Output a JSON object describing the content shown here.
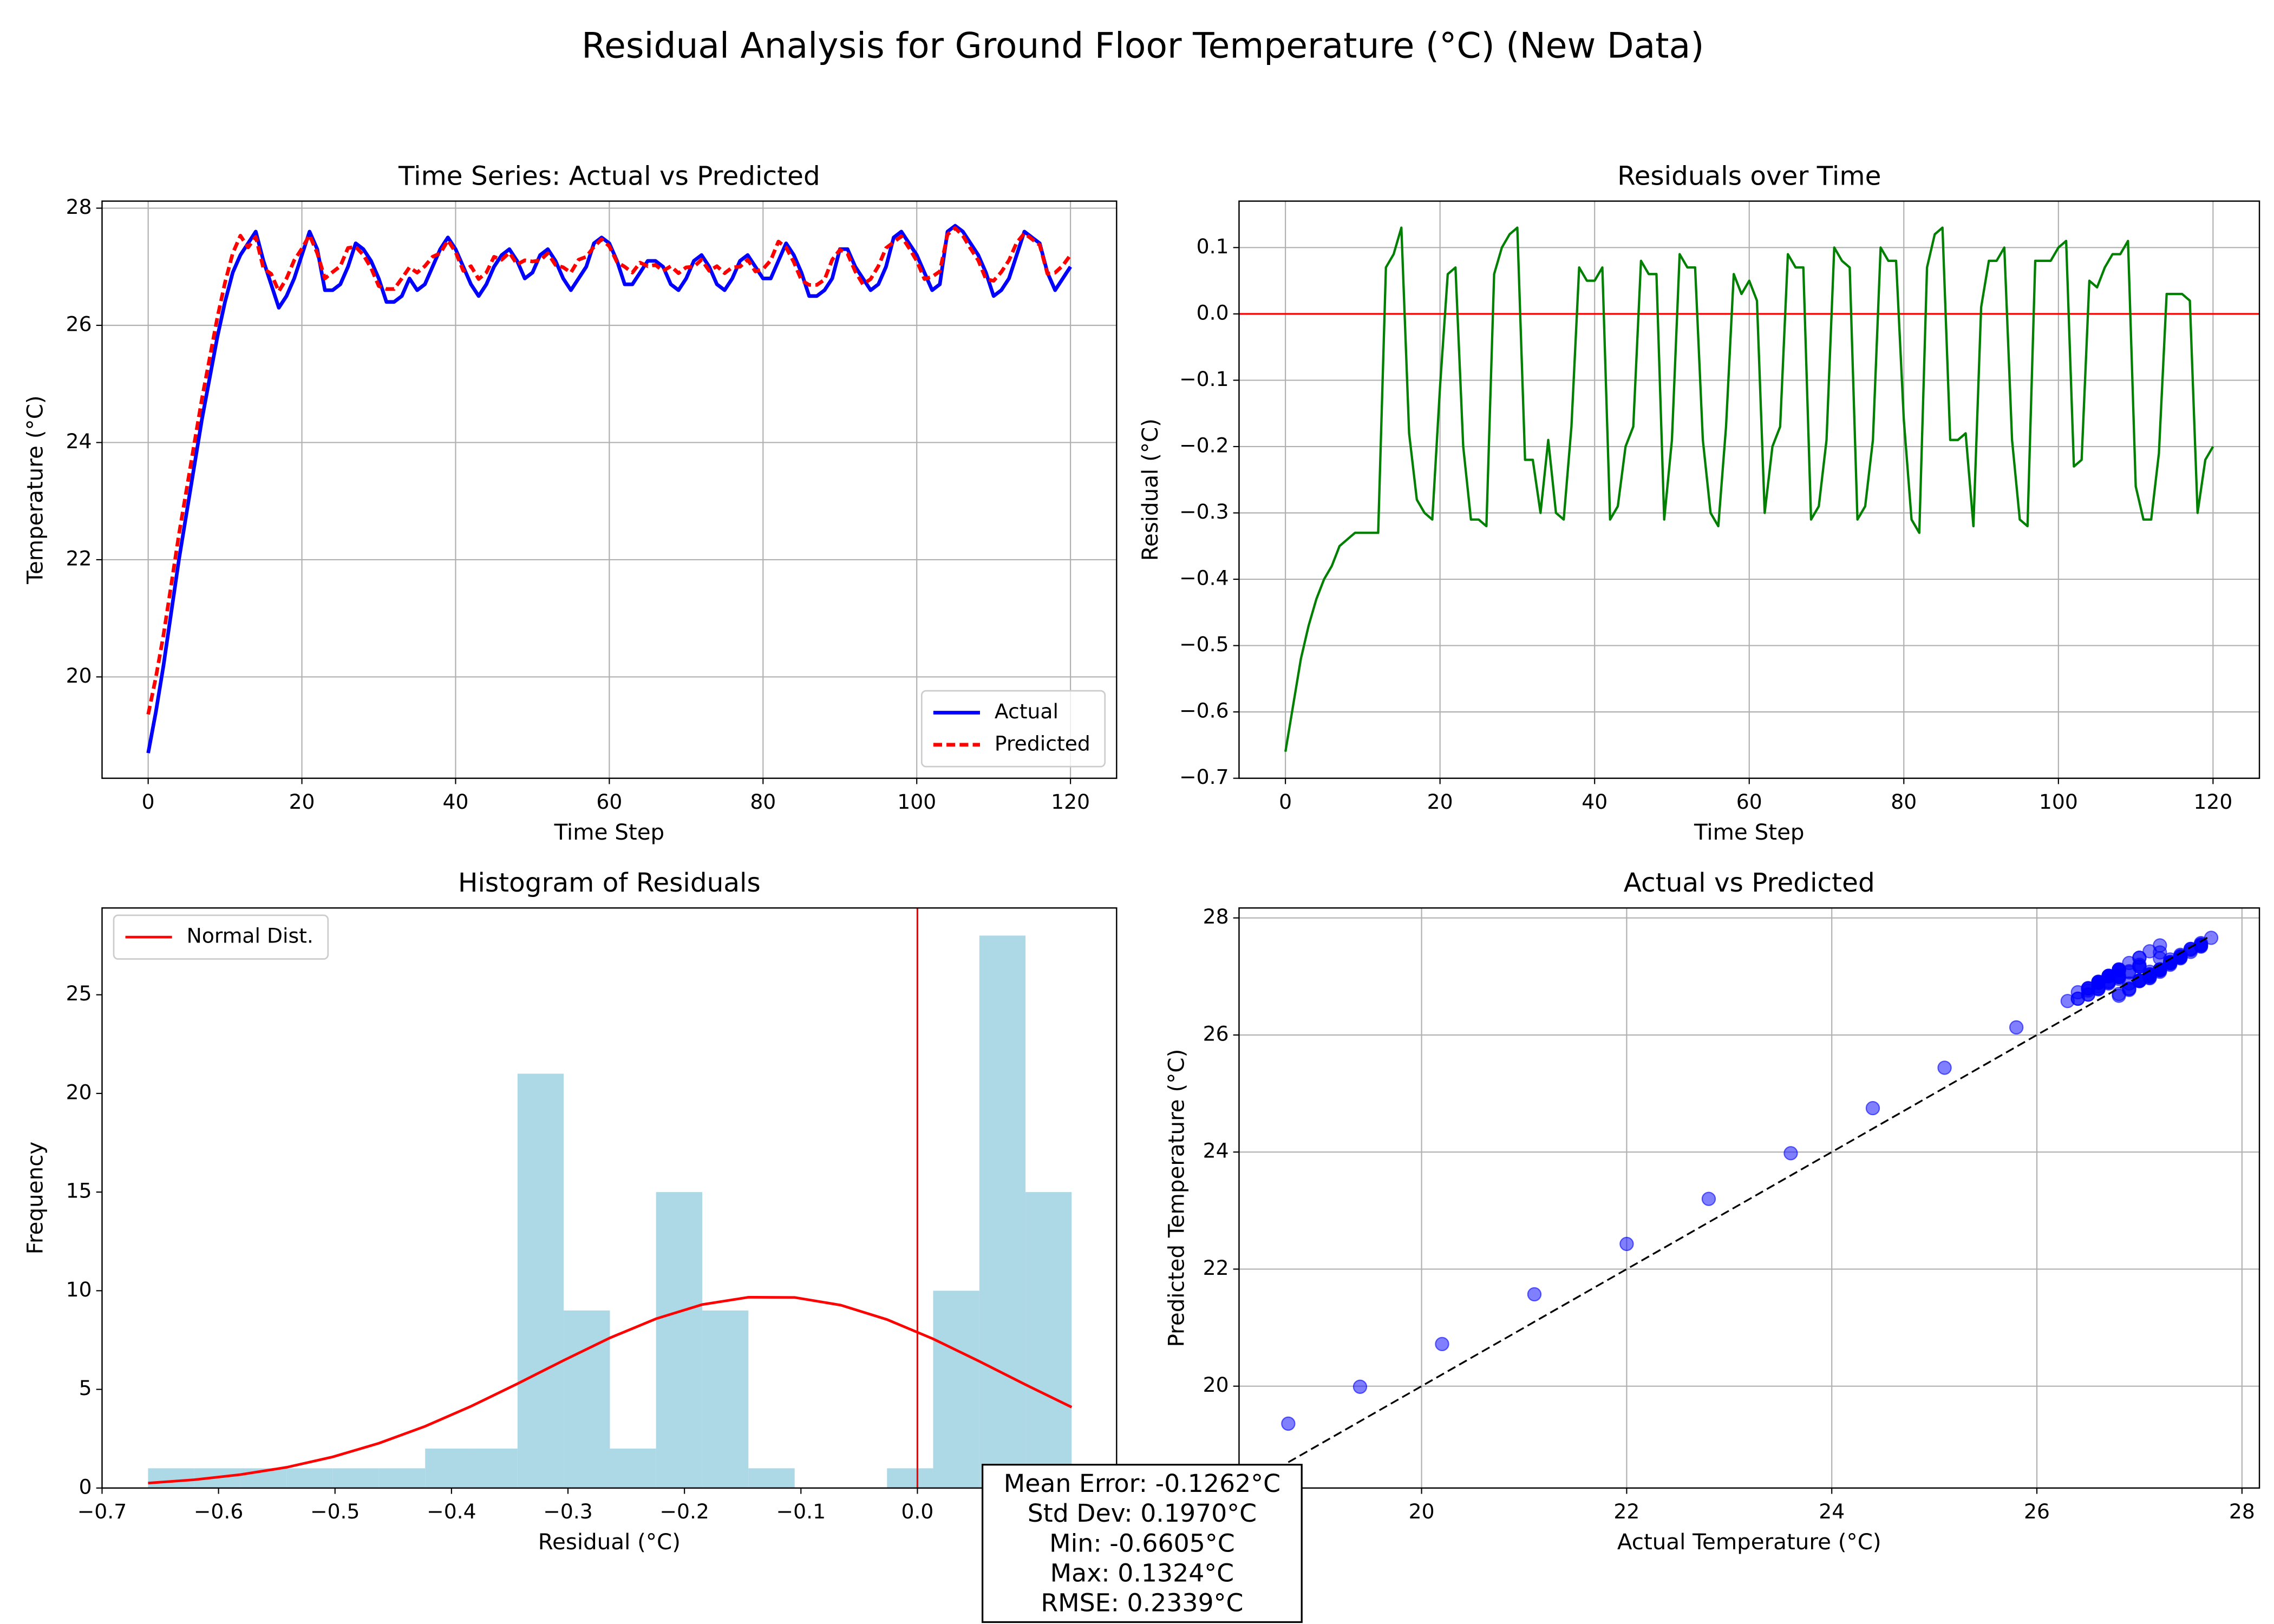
{
  "title": "Residual Analysis for Ground Floor Temperature (°C) (New Data)",
  "annotation": [
    "Mean Error: -0.1262°C",
    "Std Dev: 0.1970°C",
    "Min: -0.6605°C",
    "Max: 0.1324°C",
    "RMSE: 0.2339°C"
  ],
  "chart_data": [
    {
      "type": "line",
      "title": "Time Series: Actual vs Predicted",
      "xlabel": "Time Step",
      "ylabel": "Temperature (°C)",
      "x": [
        0,
        1,
        2,
        3,
        4,
        5,
        6,
        7,
        8,
        9,
        10,
        11,
        12,
        13,
        14,
        15,
        16,
        17,
        18,
        19,
        20,
        21,
        22,
        23,
        24,
        25,
        26,
        27,
        28,
        29,
        30,
        31,
        32,
        33,
        34,
        35,
        36,
        37,
        38,
        39,
        40,
        41,
        42,
        43,
        44,
        45,
        46,
        47,
        48,
        49,
        50,
        51,
        52,
        53,
        54,
        55,
        56,
        57,
        58,
        59,
        60,
        61,
        62,
        63,
        64,
        65,
        66,
        67,
        68,
        69,
        70,
        71,
        72,
        73,
        74,
        75,
        76,
        77,
        78,
        79,
        80,
        81,
        82,
        83,
        84,
        85,
        86,
        87,
        88,
        89,
        90,
        91,
        92,
        93,
        94,
        95,
        96,
        97,
        98,
        99,
        100,
        101,
        102,
        103,
        104,
        105,
        106,
        107,
        108,
        109,
        110,
        111,
        112,
        113,
        114,
        115,
        116,
        117,
        118,
        119,
        120
      ],
      "series": [
        {
          "name": "Actual",
          "color": "#0000ff",
          "linestyle": "solid",
          "values": [
            18.7,
            19.4,
            20.2,
            21.1,
            22.0,
            22.8,
            23.6,
            24.4,
            25.1,
            25.8,
            26.4,
            26.9,
            27.2,
            27.4,
            27.6,
            27.1,
            26.7,
            26.3,
            26.5,
            26.8,
            27.2,
            27.6,
            27.3,
            26.6,
            26.6,
            26.7,
            27.0,
            27.4,
            27.3,
            27.1,
            26.8,
            26.4,
            26.4,
            26.5,
            26.8,
            26.6,
            26.7,
            27.0,
            27.3,
            27.5,
            27.3,
            27.0,
            26.7,
            26.5,
            26.7,
            27.0,
            27.2,
            27.3,
            27.1,
            26.8,
            26.9,
            27.2,
            27.3,
            27.1,
            26.8,
            26.6,
            26.8,
            27.0,
            27.4,
            27.5,
            27.4,
            27.1,
            26.7,
            26.7,
            26.9,
            27.1,
            27.1,
            27.0,
            26.7,
            26.6,
            26.8,
            27.1,
            27.2,
            27.0,
            26.7,
            26.6,
            26.8,
            27.1,
            27.2,
            27.0,
            26.8,
            26.8,
            27.1,
            27.4,
            27.2,
            26.9,
            26.5,
            26.5,
            26.6,
            26.8,
            27.3,
            27.3,
            27.0,
            26.8,
            26.6,
            26.7,
            27.0,
            27.5,
            27.6,
            27.4,
            27.2,
            26.9,
            26.6,
            26.7,
            27.6,
            27.7,
            27.6,
            27.4,
            27.2,
            26.9,
            26.5,
            26.6,
            26.8,
            27.2,
            27.6,
            27.5,
            27.4,
            26.9,
            26.6,
            26.8,
            27.0
          ]
        },
        {
          "name": "Predicted",
          "color": "#ff0000",
          "linestyle": "dashed",
          "values": [
            19.36,
            19.99,
            20.72,
            21.57,
            22.43,
            23.2,
            23.98,
            24.75,
            25.44,
            26.13,
            26.73,
            27.23,
            27.53,
            27.33,
            27.51,
            26.97,
            26.88,
            26.58,
            26.8,
            27.11,
            27.31,
            27.54,
            27.23,
            26.8,
            26.91,
            27.01,
            27.32,
            27.34,
            27.2,
            26.98,
            26.67,
            26.62,
            26.62,
            26.8,
            26.99,
            26.9,
            27.01,
            27.17,
            27.23,
            27.45,
            27.25,
            26.93,
            27.01,
            26.79,
            26.9,
            27.17,
            27.12,
            27.24,
            27.04,
            27.11,
            27.09,
            27.11,
            27.23,
            27.03,
            26.99,
            26.9,
            27.12,
            27.17,
            27.34,
            27.47,
            27.35,
            27.08,
            27.0,
            26.9,
            27.07,
            27.01,
            27.03,
            26.93,
            27.01,
            26.89,
            26.99,
            27.0,
            27.12,
            26.93,
            27.01,
            26.89,
            26.99,
            27.0,
            27.12,
            26.92,
            26.96,
            27.11,
            27.43,
            27.33,
            27.08,
            26.77,
            26.69,
            26.69,
            26.78,
            27.12,
            27.29,
            27.22,
            26.92,
            26.7,
            26.79,
            27.01,
            27.32,
            27.42,
            27.52,
            27.32,
            27.1,
            26.79,
            26.83,
            26.92,
            27.55,
            27.66,
            27.53,
            27.31,
            27.11,
            26.79,
            26.76,
            26.91,
            27.11,
            27.41,
            27.57,
            27.47,
            27.37,
            26.88,
            26.9,
            27.02,
            27.2
          ]
        }
      ],
      "xlim": [
        -6,
        126
      ],
      "ylim": [
        18.27,
        28.12
      ],
      "xticks": [
        0,
        20,
        40,
        60,
        80,
        100,
        120
      ],
      "yticks": [
        20,
        22,
        24,
        26,
        28
      ],
      "grid": true,
      "legend": "lower right"
    },
    {
      "type": "line",
      "title": "Residuals over Time",
      "xlabel": "Time Step",
      "ylabel": "Residual (°C)",
      "x": [
        0,
        1,
        2,
        3,
        4,
        5,
        6,
        7,
        8,
        9,
        10,
        11,
        12,
        13,
        14,
        15,
        16,
        17,
        18,
        19,
        20,
        21,
        22,
        23,
        24,
        25,
        26,
        27,
        28,
        29,
        30,
        31,
        32,
        33,
        34,
        35,
        36,
        37,
        38,
        39,
        40,
        41,
        42,
        43,
        44,
        45,
        46,
        47,
        48,
        49,
        50,
        51,
        52,
        53,
        54,
        55,
        56,
        57,
        58,
        59,
        60,
        61,
        62,
        63,
        64,
        65,
        66,
        67,
        68,
        69,
        70,
        71,
        72,
        73,
        74,
        75,
        76,
        77,
        78,
        79,
        80,
        81,
        82,
        83,
        84,
        85,
        86,
        87,
        88,
        89,
        90,
        91,
        92,
        93,
        94,
        95,
        96,
        97,
        98,
        99,
        100,
        101,
        102,
        103,
        104,
        105,
        106,
        107,
        108,
        109,
        110,
        111,
        112,
        113,
        114,
        115,
        116,
        117,
        118,
        119,
        120
      ],
      "series": [
        {
          "color": "#008000",
          "linestyle": "solid",
          "values": [
            -0.66,
            -0.59,
            -0.52,
            -0.47,
            -0.43,
            -0.4,
            -0.38,
            -0.35,
            -0.34,
            -0.33,
            -0.33,
            -0.33,
            -0.33,
            0.07,
            0.09,
            0.13,
            -0.18,
            -0.28,
            -0.3,
            -0.31,
            -0.11,
            0.06,
            0.07,
            -0.2,
            -0.31,
            -0.31,
            -0.32,
            0.06,
            0.1,
            0.12,
            0.13,
            -0.22,
            -0.22,
            -0.3,
            -0.19,
            -0.3,
            -0.31,
            -0.17,
            0.07,
            0.05,
            0.05,
            0.07,
            -0.31,
            -0.29,
            -0.2,
            -0.17,
            0.08,
            0.06,
            0.06,
            -0.31,
            -0.19,
            0.09,
            0.07,
            0.07,
            -0.19,
            -0.3,
            -0.32,
            -0.17,
            0.06,
            0.03,
            0.05,
            0.02,
            -0.3,
            -0.2,
            -0.17,
            0.09,
            0.07,
            0.07,
            -0.31,
            -0.29,
            -0.19,
            0.1,
            0.08,
            0.07,
            -0.31,
            -0.29,
            -0.19,
            0.1,
            0.08,
            0.08,
            -0.16,
            -0.31,
            -0.33,
            0.07,
            0.12,
            0.13,
            -0.19,
            -0.19,
            -0.18,
            -0.32,
            0.01,
            0.08,
            0.08,
            0.1,
            -0.19,
            -0.31,
            -0.32,
            0.08,
            0.08,
            0.08,
            0.1,
            0.11,
            -0.23,
            -0.22,
            0.05,
            0.04,
            0.07,
            0.09,
            0.09,
            0.11,
            -0.26,
            -0.31,
            -0.31,
            -0.21,
            0.03,
            0.03,
            0.03,
            0.02,
            -0.3,
            -0.22,
            -0.2
          ]
        }
      ],
      "reference_line": {
        "y": 0,
        "color": "#ff0000"
      },
      "xlim": [
        -6,
        126
      ],
      "ylim": [
        -0.7,
        0.17
      ],
      "xticks": [
        0,
        20,
        40,
        60,
        80,
        100,
        120
      ],
      "yticks": [
        {
          "value": -0.7,
          "label": "−0.7"
        },
        {
          "value": -0.6,
          "label": "−0.6"
        },
        {
          "value": -0.5,
          "label": "−0.5"
        },
        {
          "value": -0.4,
          "label": "−0.4"
        },
        {
          "value": -0.3,
          "label": "−0.3"
        },
        {
          "value": -0.2,
          "label": "−0.2"
        },
        {
          "value": -0.1,
          "label": "−0.1"
        },
        {
          "value": 0,
          "label": "0.0"
        },
        0.1
      ],
      "grid": true
    },
    {
      "type": "histogram",
      "title": "Histogram of Residuals",
      "xlabel": "Residual (°C)",
      "ylabel": "Frequency",
      "bins": [
        -0.6605,
        -0.6209,
        -0.5812,
        -0.5416,
        -0.5019,
        -0.4623,
        -0.4226,
        -0.383,
        -0.3433,
        -0.3037,
        -0.264,
        -0.2244,
        -0.1847,
        -0.1451,
        -0.1054,
        -0.0658,
        -0.0261,
        0.0135,
        0.0532,
        0.0928,
        0.1324
      ],
      "counts": [
        1,
        1,
        1,
        1,
        1,
        1,
        2,
        2,
        21,
        9,
        2,
        15,
        9,
        1,
        0,
        0,
        1,
        10,
        28,
        15
      ],
      "color": "#add8e6",
      "curve": {
        "name": "Normal Dist.",
        "color": "#ff0000",
        "x": [
          -0.6605,
          -0.6209,
          -0.5812,
          -0.5416,
          -0.5019,
          -0.4623,
          -0.4226,
          -0.383,
          -0.3433,
          -0.3037,
          -0.264,
          -0.2244,
          -0.1847,
          -0.1451,
          -0.1054,
          -0.0658,
          -0.0261,
          0.0135,
          0.0532,
          0.0928,
          0.1324
        ],
        "values": [
          0.25,
          0.42,
          0.68,
          1.05,
          1.58,
          2.27,
          3.13,
          4.15,
          5.29,
          6.47,
          7.61,
          8.58,
          9.3,
          9.67,
          9.66,
          9.27,
          8.54,
          7.56,
          6.42,
          5.24,
          4.1
        ]
      },
      "reference_line": {
        "x": 0,
        "color": "#ff0000"
      },
      "xlim": [
        -0.7,
        0.171
      ],
      "ylim": [
        0,
        29.4
      ],
      "xticks": [
        {
          "value": -0.7,
          "label": "−0.7"
        },
        {
          "value": -0.6,
          "label": "−0.6"
        },
        {
          "value": -0.5,
          "label": "−0.5"
        },
        {
          "value": -0.4,
          "label": "−0.4"
        },
        {
          "value": -0.3,
          "label": "−0.3"
        },
        {
          "value": -0.2,
          "label": "−0.2"
        },
        {
          "value": -0.1,
          "label": "−0.1"
        },
        {
          "value": 0,
          "label": "0.0"
        },
        0.1
      ],
      "yticks": [
        0,
        5,
        10,
        15,
        20,
        25
      ],
      "grid": false,
      "legend": "upper left"
    },
    {
      "type": "scatter",
      "title": "Actual vs Predicted",
      "xlabel": "Actual Temperature (°C)",
      "ylabel": "Predicted Temperature (°C)",
      "x": [
        18.7,
        19.4,
        20.2,
        21.1,
        22.0,
        22.8,
        23.6,
        24.4,
        25.1,
        25.8,
        26.4,
        26.9,
        27.2,
        27.4,
        27.6,
        27.1,
        26.7,
        26.3,
        26.5,
        26.8,
        27.2,
        27.6,
        27.3,
        26.6,
        26.6,
        26.7,
        27.0,
        27.4,
        27.3,
        27.1,
        26.8,
        26.4,
        26.4,
        26.5,
        26.8,
        26.6,
        26.7,
        27.0,
        27.3,
        27.5,
        27.3,
        27.0,
        26.7,
        26.5,
        26.7,
        27.0,
        27.2,
        27.3,
        27.1,
        26.8,
        26.9,
        27.2,
        27.3,
        27.1,
        26.8,
        26.6,
        26.8,
        27.0,
        27.4,
        27.5,
        27.4,
        27.1,
        26.7,
        26.7,
        26.9,
        27.1,
        27.1,
        27.0,
        26.7,
        26.6,
        26.8,
        27.1,
        27.2,
        27.0,
        26.7,
        26.6,
        26.8,
        27.1,
        27.2,
        27.0,
        26.8,
        26.8,
        27.1,
        27.4,
        27.2,
        26.9,
        26.5,
        26.5,
        26.6,
        26.8,
        27.3,
        27.3,
        27.0,
        26.8,
        26.6,
        26.7,
        27.0,
        27.5,
        27.6,
        27.4,
        27.2,
        26.9,
        26.6,
        26.7,
        27.6,
        27.7,
        27.6,
        27.4,
        27.2,
        26.9,
        26.5,
        26.6,
        26.8,
        27.2,
        27.6,
        27.5,
        27.4,
        26.9,
        26.6,
        26.8,
        27.0
      ],
      "y": [
        19.36,
        19.99,
        20.72,
        21.57,
        22.43,
        23.2,
        23.98,
        24.75,
        25.44,
        26.13,
        26.73,
        27.23,
        27.53,
        27.33,
        27.51,
        26.97,
        26.88,
        26.58,
        26.8,
        27.11,
        27.31,
        27.54,
        27.23,
        26.8,
        26.91,
        27.01,
        27.32,
        27.34,
        27.2,
        26.98,
        26.67,
        26.62,
        26.62,
        26.8,
        26.99,
        26.9,
        27.01,
        27.17,
        27.23,
        27.45,
        27.25,
        26.93,
        27.01,
        26.79,
        26.9,
        27.17,
        27.12,
        27.24,
        27.04,
        27.11,
        27.09,
        27.11,
        27.23,
        27.03,
        26.99,
        26.9,
        27.12,
        27.17,
        27.34,
        27.47,
        27.35,
        27.08,
        27.0,
        26.9,
        27.07,
        27.01,
        27.03,
        26.93,
        27.01,
        26.89,
        26.99,
        27.0,
        27.12,
        26.93,
        27.01,
        26.89,
        26.99,
        27.0,
        27.12,
        26.92,
        26.96,
        27.11,
        27.43,
        27.33,
        27.08,
        26.77,
        26.69,
        26.69,
        26.78,
        27.12,
        27.29,
        27.22,
        26.92,
        26.7,
        26.79,
        27.01,
        27.32,
        27.42,
        27.52,
        27.32,
        27.1,
        26.79,
        26.83,
        26.92,
        27.55,
        27.66,
        27.53,
        27.31,
        27.11,
        26.79,
        26.76,
        26.91,
        27.11,
        27.41,
        27.57,
        27.47,
        27.37,
        26.88,
        26.9,
        27.02,
        27.2
      ],
      "color": "#0000ff",
      "reference_line": {
        "x": [
          18.7,
          27.7
        ],
        "y": [
          18.7,
          27.7
        ],
        "color": "#000000",
        "linestyle": "dashed"
      },
      "xlim": [
        18.22,
        28.17
      ],
      "ylim": [
        18.26,
        28.17
      ],
      "xticks": [
        20,
        22,
        24,
        26,
        28
      ],
      "yticks": [
        20,
        22,
        24,
        26,
        28
      ],
      "grid": true
    }
  ]
}
